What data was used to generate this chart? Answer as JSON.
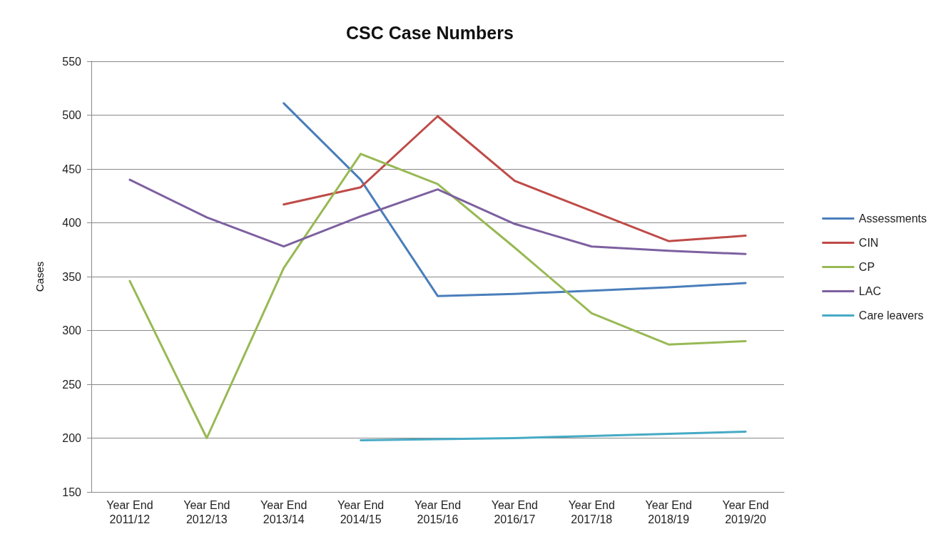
{
  "chart_data": {
    "type": "line",
    "title": "CSC Case Numbers",
    "ylabel": "Cases",
    "categories": [
      "Year End\n2011/12",
      "Year End\n2012/13",
      "Year End\n2013/14",
      "Year End\n2014/15",
      "Year End\n2015/16",
      "Year End\n2016/17",
      "Year End\n2017/18",
      "Year End\n2018/19",
      "Year End\n2019/20"
    ],
    "series": [
      {
        "name": "Assessments",
        "color": "#4a7ebb",
        "values": [
          null,
          null,
          511,
          440,
          332,
          334,
          337,
          340,
          344
        ]
      },
      {
        "name": "CIN",
        "color": "#be4b48",
        "values": [
          null,
          null,
          417,
          433,
          499,
          439,
          411,
          383,
          388
        ]
      },
      {
        "name": "CP",
        "color": "#98b954",
        "values": [
          346,
          200,
          358,
          464,
          436,
          377,
          316,
          287,
          290
        ]
      },
      {
        "name": "LAC",
        "color": "#7d60a0",
        "values": [
          440,
          405,
          378,
          406,
          431,
          399,
          378,
          374,
          371
        ]
      },
      {
        "name": "Care leavers",
        "color": "#46aac5",
        "values": [
          null,
          null,
          null,
          198,
          199,
          200,
          202,
          204,
          206
        ]
      }
    ],
    "ylim": [
      150,
      550
    ],
    "yticks": [
      150,
      200,
      250,
      300,
      350,
      400,
      450,
      500,
      550
    ],
    "grid": "y",
    "legend": "right",
    "marker": "none",
    "line_style": "solid"
  }
}
